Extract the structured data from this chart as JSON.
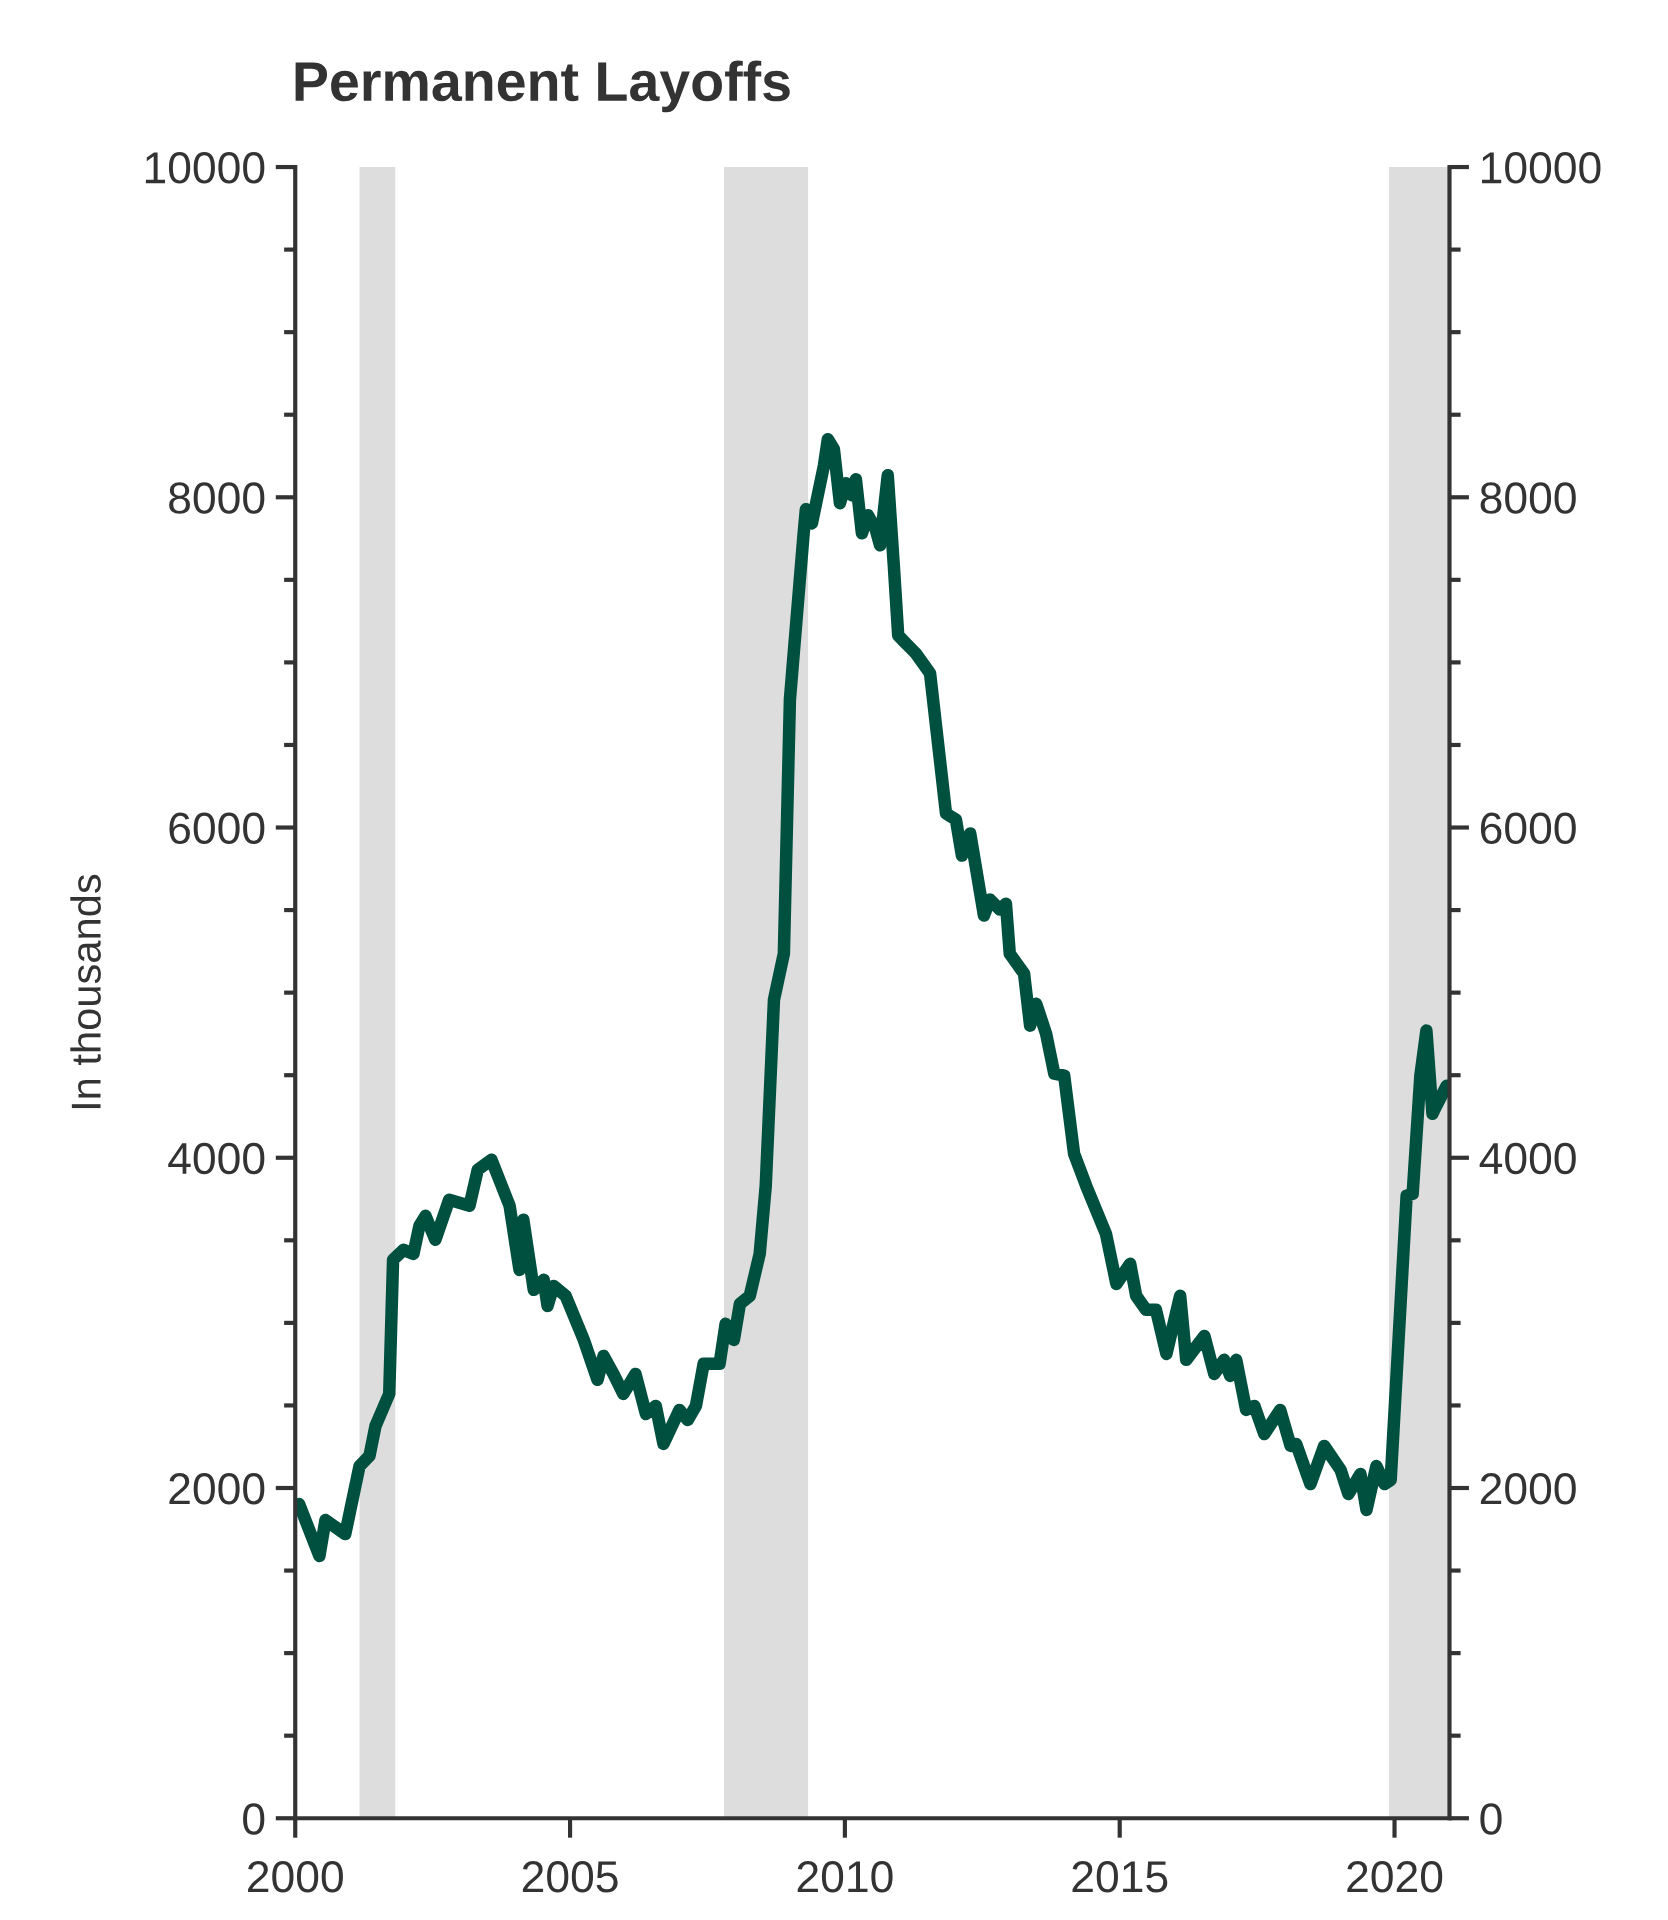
{
  "chart_data": {
    "type": "line",
    "title": "Permanent Layoffs",
    "ylabel": "In thousands",
    "x": [
      2000.07,
      2000.44,
      2000.55,
      2000.91,
      2001.17,
      2001.35,
      2001.46,
      2001.71,
      2001.78,
      2001.97,
      2002.15,
      2002.26,
      2002.37,
      2002.55,
      2002.8,
      2003.17,
      2003.32,
      2003.57,
      2003.9,
      2004.08,
      2004.15,
      2004.34,
      2004.52,
      2004.59,
      2004.7,
      2004.92,
      2005.1,
      2005.25,
      2005.5,
      2005.61,
      2005.79,
      2005.97,
      2006.19,
      2006.38,
      2006.56,
      2006.7,
      2006.99,
      2007.14,
      2007.29,
      2007.43,
      2007.72,
      2007.83,
      2007.98,
      2008.09,
      2008.27,
      2008.45,
      2008.56,
      2008.71,
      2008.89,
      2009.0,
      2009.25,
      2009.29,
      2009.4,
      2009.62,
      2009.69,
      2009.8,
      2009.91,
      2010.02,
      2010.13,
      2010.2,
      2010.31,
      2010.42,
      2010.56,
      2010.64,
      2010.78,
      2010.89,
      2010.97,
      2011.11,
      2011.29,
      2011.55,
      2011.84,
      2012.02,
      2012.13,
      2012.28,
      2012.53,
      2012.64,
      2012.82,
      2012.93,
      2013.0,
      2013.26,
      2013.37,
      2013.48,
      2013.66,
      2013.81,
      2013.99,
      2014.17,
      2014.39,
      2014.75,
      2014.94,
      2015.19,
      2015.3,
      2015.48,
      2015.66,
      2015.85,
      2016.1,
      2016.21,
      2016.54,
      2016.72,
      2016.9,
      2017.01,
      2017.12,
      2017.3,
      2017.45,
      2017.63,
      2017.92,
      2018.11,
      2018.21,
      2018.47,
      2018.72,
      2019.02,
      2019.16,
      2019.38,
      2019.49,
      2019.67,
      2019.82,
      2019.93,
      2020.22,
      2020.33,
      2020.47,
      2020.58,
      2020.69,
      2020.76,
      2020.95
    ],
    "series": [
      {
        "color": "#00503f",
        "values": [
          1903,
          1588,
          1806,
          1721,
          2133,
          2194,
          2376,
          2570,
          3382,
          3442,
          3418,
          3588,
          3648,
          3503,
          3745,
          3709,
          3927,
          3988,
          3709,
          3321,
          3624,
          3200,
          3261,
          3103,
          3224,
          3164,
          3018,
          2897,
          2655,
          2800,
          2691,
          2570,
          2691,
          2448,
          2497,
          2267,
          2473,
          2412,
          2497,
          2752,
          2752,
          2994,
          2897,
          3115,
          3164,
          3418,
          3830,
          4958,
          5236,
          6776,
          7782,
          7927,
          7842,
          8194,
          8352,
          8291,
          7964,
          8085,
          8012,
          8109,
          7782,
          7891,
          7806,
          7709,
          8133,
          7588,
          7164,
          7115,
          7055,
          6933,
          6085,
          6048,
          5830,
          5964,
          5467,
          5564,
          5503,
          5539,
          5236,
          5115,
          4800,
          4933,
          4752,
          4509,
          4497,
          4024,
          3830,
          3539,
          3236,
          3358,
          3164,
          3079,
          3079,
          2812,
          3164,
          2776,
          2921,
          2691,
          2776,
          2679,
          2776,
          2473,
          2497,
          2327,
          2473,
          2255,
          2267,
          2024,
          2255,
          2109,
          1964,
          2085,
          1867,
          2133,
          2024,
          2048,
          3770,
          3782,
          4497,
          4770,
          4267,
          4315,
          4436
        ]
      }
    ],
    "xlim": [
      2000,
      2021
    ],
    "xticks": [
      2000,
      2005,
      2010,
      2015,
      2020
    ],
    "ylim": [
      0,
      10000
    ],
    "yticks": [
      0,
      {
        "value": 500,
        "label": null
      },
      2000,
      {
        "value": 1000,
        "label": null
      },
      {
        "value": 1500,
        "label": null
      },
      {
        "value": 2500,
        "label": null
      },
      {
        "value": 3000,
        "label": null
      },
      {
        "value": 3500,
        "label": null
      },
      4000,
      {
        "value": 4500,
        "label": null
      },
      {
        "value": 5000,
        "label": null
      },
      {
        "value": 5500,
        "label": null
      },
      6000,
      {
        "value": 6500,
        "label": null
      },
      {
        "value": 7000,
        "label": null
      },
      {
        "value": 7500,
        "label": null
      },
      8000,
      {
        "value": 8500,
        "label": null
      },
      {
        "value": 9000,
        "label": null
      },
      {
        "value": 9500,
        "label": null
      },
      10000
    ],
    "y2lim": [
      0,
      10000
    ],
    "y2ticks": [
      0,
      {
        "value": 500,
        "label": null
      },
      2000,
      {
        "value": 1000,
        "label": null
      },
      {
        "value": 1500,
        "label": null
      },
      {
        "value": 2500,
        "label": null
      },
      {
        "value": 3000,
        "label": null
      },
      {
        "value": 3500,
        "label": null
      },
      4000,
      {
        "value": 4500,
        "label": null
      },
      {
        "value": 5000,
        "label": null
      },
      {
        "value": 5500,
        "label": null
      },
      6000,
      {
        "value": 6500,
        "label": null
      },
      {
        "value": 7000,
        "label": null
      },
      {
        "value": 7500,
        "label": null
      },
      8000,
      {
        "value": 8500,
        "label": null
      },
      {
        "value": 9000,
        "label": null
      },
      {
        "value": 9500,
        "label": null
      },
      10000
    ],
    "bands": [
      {
        "axis": "x",
        "from": 2001.17,
        "to": 2001.82,
        "color": "#dddddd"
      },
      {
        "axis": "x",
        "from": 2007.8,
        "to": 2009.33,
        "color": "#dddddd"
      },
      {
        "axis": "x",
        "from": 2019.9,
        "to": 2021.0,
        "color": "#dddddd"
      }
    ],
    "grid": false,
    "line_style": "solid"
  }
}
